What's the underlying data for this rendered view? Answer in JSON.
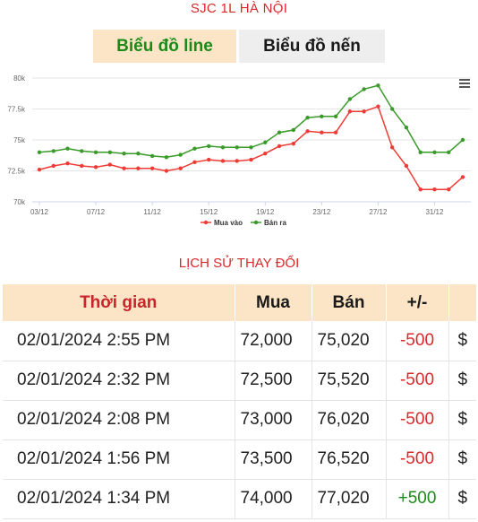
{
  "title": "SJC 1L HÀ NỘI",
  "tabs": [
    {
      "label": "Biểu đồ line",
      "active": true
    },
    {
      "label": "Biểu đồ nến",
      "active": false
    }
  ],
  "chart_data": {
    "type": "line",
    "x_tick_labels": [
      "03/12",
      "07/12",
      "11/12",
      "15/12",
      "19/12",
      "23/12",
      "27/12",
      "31/12"
    ],
    "y_tick_labels": [
      "70k",
      "72.5k",
      "75k",
      "77.5k",
      "80k"
    ],
    "ylim": [
      70,
      80
    ],
    "x_count": 31,
    "tick_every": 4,
    "series": [
      {
        "name": "Mua vào",
        "color": "#ef3b36",
        "values": [
          72.6,
          72.9,
          73.1,
          72.9,
          72.8,
          73.0,
          72.7,
          72.7,
          72.7,
          72.5,
          72.7,
          73.2,
          73.4,
          73.3,
          73.3,
          73.4,
          73.9,
          74.5,
          74.7,
          75.7,
          75.6,
          75.6,
          77.3,
          77.3,
          77.7,
          74.4,
          72.9,
          71.0,
          71.0,
          71.0,
          72.0
        ]
      },
      {
        "name": "Bán ra",
        "color": "#3a9a2a",
        "values": [
          74.0,
          74.1,
          74.3,
          74.1,
          74.0,
          74.0,
          73.9,
          73.9,
          73.7,
          73.6,
          73.8,
          74.3,
          74.5,
          74.4,
          74.4,
          74.4,
          74.8,
          75.6,
          75.8,
          76.8,
          76.9,
          76.9,
          78.3,
          79.1,
          79.4,
          77.5,
          76.0,
          74.0,
          74.0,
          74.0,
          75.0
        ]
      }
    ],
    "legend_position": "bottom-center",
    "grid": "horizontal"
  },
  "history": {
    "title": "LỊCH SỬ THAY ĐỔI",
    "headers": [
      "Thời gian",
      "Mua",
      "Bán",
      "+/-",
      ""
    ],
    "rows": [
      {
        "time": "02/01/2024 2:55 PM",
        "buy": "72,000",
        "sell": "75,020",
        "change": "-500",
        "dir": "neg",
        "icon": "$"
      },
      {
        "time": "02/01/2024 2:32 PM",
        "buy": "72,500",
        "sell": "75,520",
        "change": "-500",
        "dir": "neg",
        "icon": "$"
      },
      {
        "time": "02/01/2024 2:08 PM",
        "buy": "73,000",
        "sell": "76,020",
        "change": "-500",
        "dir": "neg",
        "icon": "$"
      },
      {
        "time": "02/01/2024 1:56 PM",
        "buy": "73,500",
        "sell": "76,520",
        "change": "-500",
        "dir": "neg",
        "icon": "$"
      },
      {
        "time": "02/01/2024 1:34 PM",
        "buy": "74,000",
        "sell": "77,020",
        "change": "+500",
        "dir": "pos",
        "icon": "$"
      }
    ]
  }
}
